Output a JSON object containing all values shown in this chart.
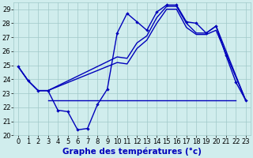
{
  "main_line": {
    "x": [
      0,
      1,
      2,
      3,
      4,
      5,
      6,
      7,
      8,
      9,
      10,
      11,
      12,
      13,
      14,
      15,
      16,
      17,
      18,
      19,
      20,
      21,
      22,
      23
    ],
    "y": [
      24.9,
      23.9,
      23.2,
      23.2,
      21.8,
      21.7,
      20.4,
      20.5,
      22.2,
      23.3,
      27.3,
      28.7,
      28.1,
      27.5,
      28.8,
      29.3,
      29.3,
      28.1,
      28.0,
      27.3,
      27.8,
      25.7,
      23.8,
      22.5
    ]
  },
  "flat_line": {
    "x": [
      3,
      22
    ],
    "y": [
      22.5,
      22.5
    ]
  },
  "trend_line1": {
    "x": [
      0,
      1,
      2,
      3,
      10,
      11,
      12,
      13,
      14,
      15,
      16,
      17,
      18,
      19,
      20,
      23
    ],
    "y": [
      24.9,
      23.9,
      23.2,
      23.2,
      25.2,
      25.1,
      26.2,
      26.8,
      28.0,
      29.0,
      29.0,
      27.7,
      27.2,
      27.2,
      27.5,
      22.5
    ]
  },
  "trend_line2": {
    "x": [
      0,
      1,
      2,
      3,
      10,
      11,
      12,
      13,
      14,
      15,
      16,
      17,
      18,
      19,
      20,
      23
    ],
    "y": [
      24.9,
      23.9,
      23.2,
      23.2,
      25.6,
      25.5,
      26.6,
      27.1,
      28.4,
      29.2,
      29.2,
      28.0,
      27.3,
      27.3,
      27.8,
      22.5
    ]
  },
  "xlabel": "Graphe des températures (°c)",
  "xlim": [
    -0.5,
    23.5
  ],
  "ylim": [
    20,
    29.5
  ],
  "yticks": [
    20,
    21,
    22,
    23,
    24,
    25,
    26,
    27,
    28,
    29
  ],
  "xticks": [
    0,
    1,
    2,
    3,
    4,
    5,
    6,
    7,
    8,
    9,
    10,
    11,
    12,
    13,
    14,
    15,
    16,
    17,
    18,
    19,
    20,
    21,
    22,
    23
  ],
  "bg_color": "#d0eded",
  "grid_color": "#a0c8c8",
  "line_color": "#0000bb",
  "xlabel_fontsize": 7.5,
  "tick_fontsize": 6
}
